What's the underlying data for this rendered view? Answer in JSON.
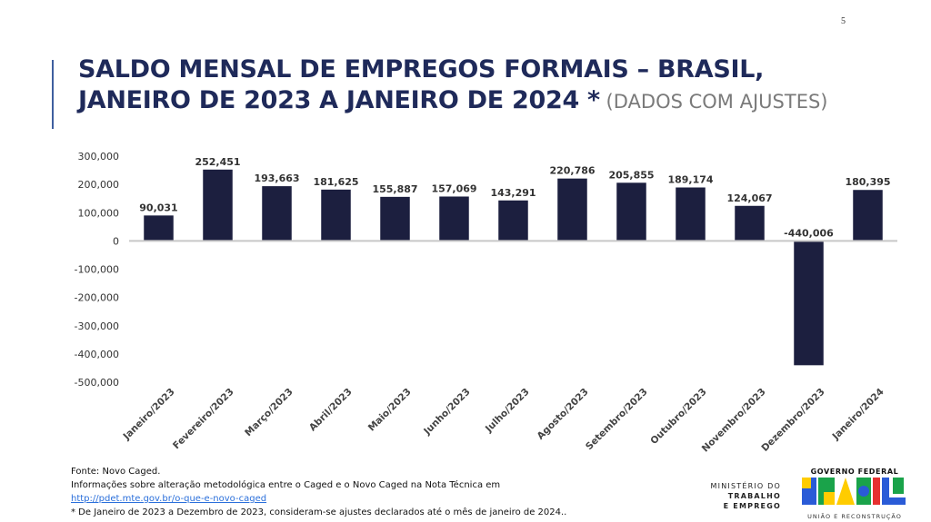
{
  "page_number": "5",
  "title": {
    "line1": "SALDO MENSAL DE EMPREGOS FORMAIS – BRASIL,",
    "line2": "JANEIRO DE 2023 A JANEIRO DE 2024",
    "star": " *",
    "subtitle": " (DADOS COM AJUSTES)"
  },
  "chart_data": {
    "type": "bar",
    "title": "",
    "xlabel": "",
    "ylabel": "",
    "categories": [
      "Janeiro/2023",
      "Fevereiro/2023",
      "Março/2023",
      "Abril/2023",
      "Maio/2023",
      "Junho/2023",
      "Julho/2023",
      "Agosto/2023",
      "Setembro/2023",
      "Outubro/2023",
      "Novembro/2023",
      "Dezembro/2023",
      "Janeiro/2024"
    ],
    "values": [
      90031,
      252451,
      193663,
      181625,
      155887,
      157069,
      143291,
      220786,
      205855,
      189174,
      124067,
      -440006,
      180395
    ],
    "value_labels": [
      "90,031",
      "252,451",
      "193,663",
      "181,625",
      "155,887",
      "157,069",
      "143,291",
      "220,786",
      "205,855",
      "189,174",
      "124,067",
      "-440,006",
      "180,395"
    ],
    "ylim": [
      -500000,
      300000
    ],
    "yticks": [
      300000,
      200000,
      100000,
      0,
      -100000,
      -200000,
      -300000,
      -400000,
      -500000
    ],
    "ytick_labels": [
      "300,000",
      "200,000",
      "100,000",
      "0",
      "-100,000",
      "-200,000",
      "-300,000",
      "-400,000",
      "-500,000"
    ],
    "bar_color": "#1c1f3f",
    "grid": false
  },
  "footer": {
    "source": "Fonte: Novo Caged.",
    "info": "Informações sobre alteração metodológica entre o Caged e o Novo Caged na Nota Técnica em",
    "link": "http://pdet.mte.gov.br/o-que-e-novo-caged",
    "note": "* De Janeiro de 2023 a Dezembro de 2023, consideram-se ajustes declarados até o mês de janeiro de 2024.."
  },
  "ministry": {
    "line1": "MINISTÉRIO DO",
    "line2": "TRABALHO",
    "line3": "E EMPREGO"
  },
  "government": {
    "top": "GOVERNO FEDERAL",
    "logo_word": "BRASIL",
    "bottom": "UNIÃO E RECONSTRUÇÃO"
  },
  "colors": {
    "title": "#1f2a5a",
    "accent": "#3f5f9f",
    "bar": "#1c1f3f",
    "link": "#2a6fdb"
  }
}
